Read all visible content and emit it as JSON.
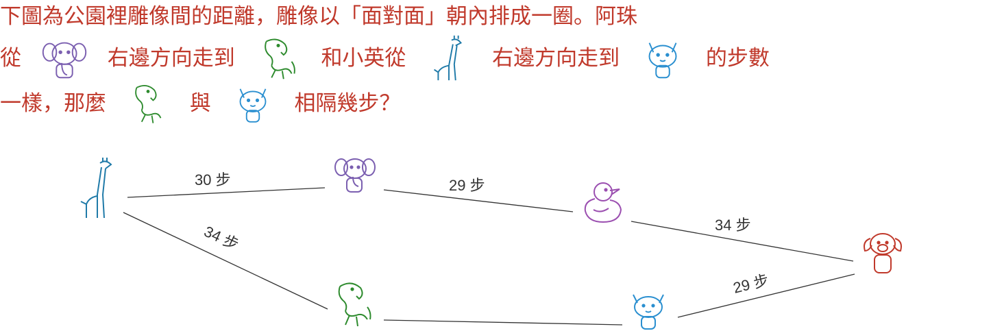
{
  "question": {
    "line1": "下圖為公園裡雕像間的距離，雕像以「面對面」朝內排成一圈。阿珠",
    "line2_a": "從",
    "line2_b": "右邊方向走到",
    "line2_c": "和小英從",
    "line2_d": "右邊方向走到",
    "line2_e": "的步數",
    "line3_a": "一樣，那麼",
    "line3_b": "與",
    "line3_c": "相隔幾步？"
  },
  "diagram": {
    "edges": [
      {
        "from": "giraffe",
        "to": "elephant",
        "label": "30 步"
      },
      {
        "from": "elephant",
        "to": "duck",
        "label": "29 步"
      },
      {
        "from": "duck",
        "to": "dog",
        "label": "34 步"
      },
      {
        "from": "giraffe",
        "to": "horse",
        "label": "34 步"
      },
      {
        "from": "dog",
        "to": "cat",
        "label": "29 步"
      },
      {
        "from": "horse",
        "to": "cat",
        "label": ""
      }
    ]
  },
  "colors": {
    "text": "#c0392b",
    "giraffe": "#1f7aa8",
    "elephant": "#7b5fb0",
    "duck": "#9b4fb0",
    "dog": "#c0392b",
    "horse": "#2e8b2e",
    "cat": "#2a8fd0"
  }
}
